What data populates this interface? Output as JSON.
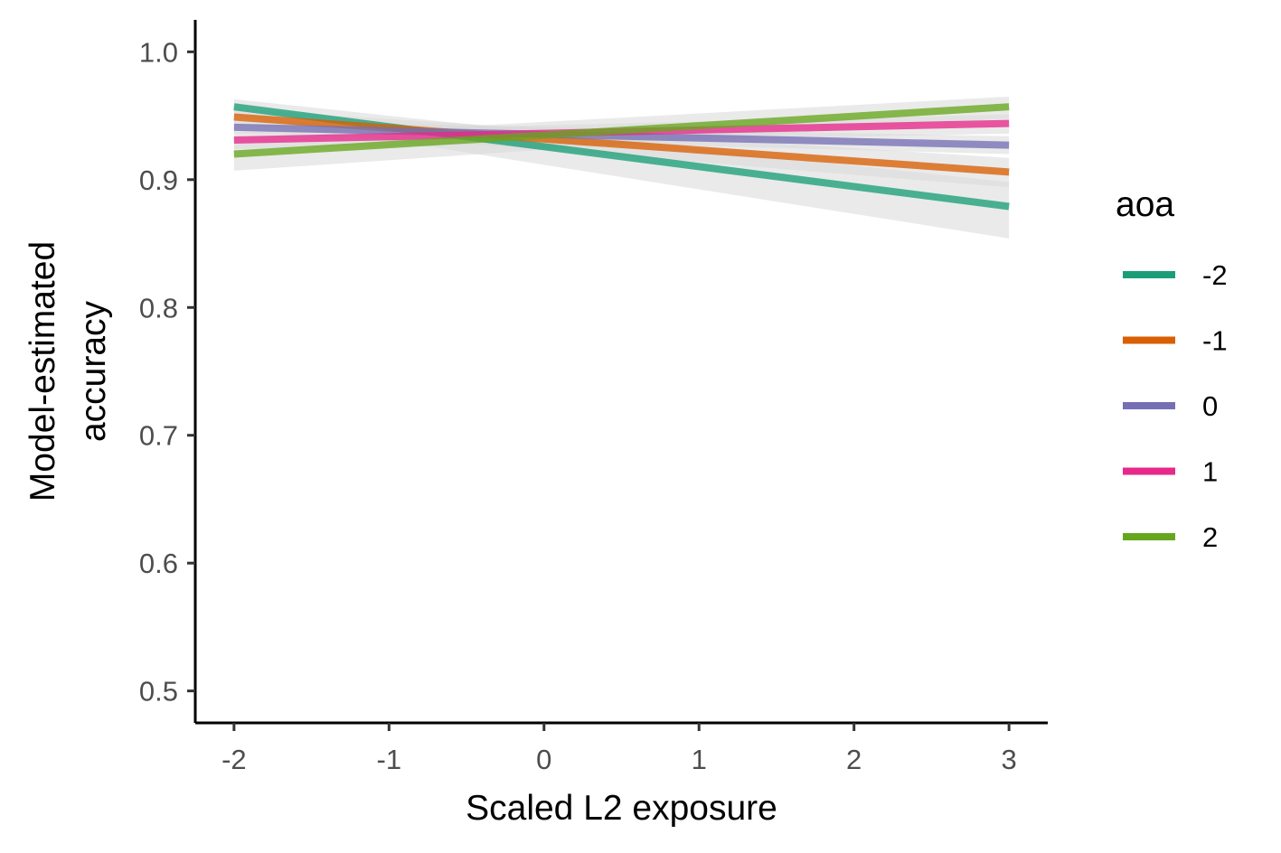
{
  "chart_data": {
    "type": "line",
    "xlabel": "Scaled L2 exposure",
    "ylabel": [
      "Model-estimated",
      "accuracy"
    ],
    "xlim": [
      -2.25,
      3.25
    ],
    "ylim": [
      0.475,
      1.025
    ],
    "x_ticks": [
      -2,
      -1,
      0,
      1,
      2,
      3
    ],
    "y_ticks": [
      0.5,
      0.6,
      0.7,
      0.8,
      0.9,
      1.0
    ],
    "x_tick_labels": [
      "-2",
      "-1",
      "0",
      "1",
      "2",
      "3"
    ],
    "y_tick_labels": [
      "0.5",
      "0.6",
      "0.7",
      "0.8",
      "0.9",
      "1.0"
    ],
    "grid": false,
    "legend": {
      "title": "aoa",
      "placement": "right"
    },
    "ribbon_color": "#d9d9d9",
    "series": [
      {
        "name": "-2",
        "color": "#1b9e77",
        "x": [
          -2,
          3
        ],
        "y": [
          0.957,
          0.879
        ],
        "band_low": [
          0.95,
          0.854
        ],
        "band_high": [
          0.963,
          0.898
        ]
      },
      {
        "name": "-1",
        "color": "#d95f02",
        "x": [
          -2,
          3
        ],
        "y": [
          0.949,
          0.906
        ],
        "band_low": [
          0.943,
          0.894
        ],
        "band_high": [
          0.955,
          0.917
        ]
      },
      {
        "name": "0",
        "color": "#7570b3",
        "x": [
          -2,
          3
        ],
        "y": [
          0.941,
          0.927
        ],
        "band_low": [
          0.936,
          0.92
        ],
        "band_high": [
          0.946,
          0.934
        ]
      },
      {
        "name": "1",
        "color": "#e7298a",
        "x": [
          -2,
          3
        ],
        "y": [
          0.931,
          0.944
        ],
        "band_low": [
          0.924,
          0.936
        ],
        "band_high": [
          0.937,
          0.951
        ]
      },
      {
        "name": "2",
        "color": "#66a61e",
        "x": [
          -2,
          3
        ],
        "y": [
          0.92,
          0.957
        ],
        "band_low": [
          0.907,
          0.948
        ],
        "band_high": [
          0.932,
          0.965
        ]
      }
    ]
  }
}
